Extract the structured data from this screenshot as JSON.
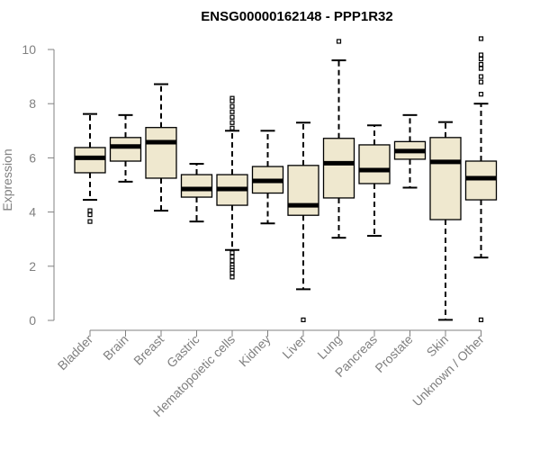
{
  "chart_data": {
    "type": "boxplot",
    "title": "ENSG00000162148 - PPP1R32",
    "ylabel": "Expression",
    "ylim": [
      0,
      10.5
    ],
    "yticks": [
      "0",
      "2",
      "4",
      "6",
      "8",
      "10"
    ],
    "box_color": "#efe8cf",
    "categories": [
      "Bladder",
      "Brain",
      "Breast",
      "Gastric",
      "Hematopoietic cells",
      "Kidney",
      "Liver",
      "Lung",
      "Pancreas",
      "Prostate",
      "Skin",
      "Unknown / Other"
    ],
    "boxes": [
      {
        "min": 4.45,
        "q1": 5.45,
        "median": 6.0,
        "q3": 6.38,
        "max": 7.62,
        "outliers": [
          4.05,
          3.9,
          3.65
        ]
      },
      {
        "min": 5.12,
        "q1": 5.88,
        "median": 6.42,
        "q3": 6.75,
        "max": 7.58,
        "outliers": []
      },
      {
        "min": 4.05,
        "q1": 5.25,
        "median": 6.58,
        "q3": 7.12,
        "max": 8.72,
        "outliers": []
      },
      {
        "min": 3.65,
        "q1": 4.55,
        "median": 4.85,
        "q3": 5.38,
        "max": 5.78,
        "outliers": []
      },
      {
        "min": 2.6,
        "q1": 4.25,
        "median": 4.85,
        "q3": 5.38,
        "max": 7.0,
        "outliers": [
          8.2,
          8.1,
          7.9,
          7.7,
          7.5,
          7.3,
          7.1,
          2.5,
          2.35,
          2.2,
          2.05,
          1.95,
          1.85,
          1.75,
          1.6
        ]
      },
      {
        "min": 3.58,
        "q1": 4.7,
        "median": 5.15,
        "q3": 5.68,
        "max": 7.0,
        "outliers": []
      },
      {
        "min": 1.15,
        "q1": 3.88,
        "median": 4.25,
        "q3": 5.72,
        "max": 7.3,
        "outliers": [
          0.02
        ]
      },
      {
        "min": 3.05,
        "q1": 4.52,
        "median": 5.8,
        "q3": 6.72,
        "max": 9.6,
        "outliers": [
          10.3
        ]
      },
      {
        "min": 3.12,
        "q1": 5.05,
        "median": 5.55,
        "q3": 6.48,
        "max": 7.2,
        "outliers": []
      },
      {
        "min": 4.9,
        "q1": 5.95,
        "median": 6.25,
        "q3": 6.6,
        "max": 7.58,
        "outliers": []
      },
      {
        "min": 0.02,
        "q1": 3.72,
        "median": 5.85,
        "q3": 6.75,
        "max": 7.32,
        "outliers": []
      },
      {
        "min": 2.32,
        "q1": 4.45,
        "median": 5.25,
        "q3": 5.88,
        "max": 8.0,
        "outliers": [
          10.4,
          9.8,
          9.65,
          9.45,
          9.3,
          9.0,
          8.8,
          8.35,
          0.02
        ]
      }
    ]
  }
}
